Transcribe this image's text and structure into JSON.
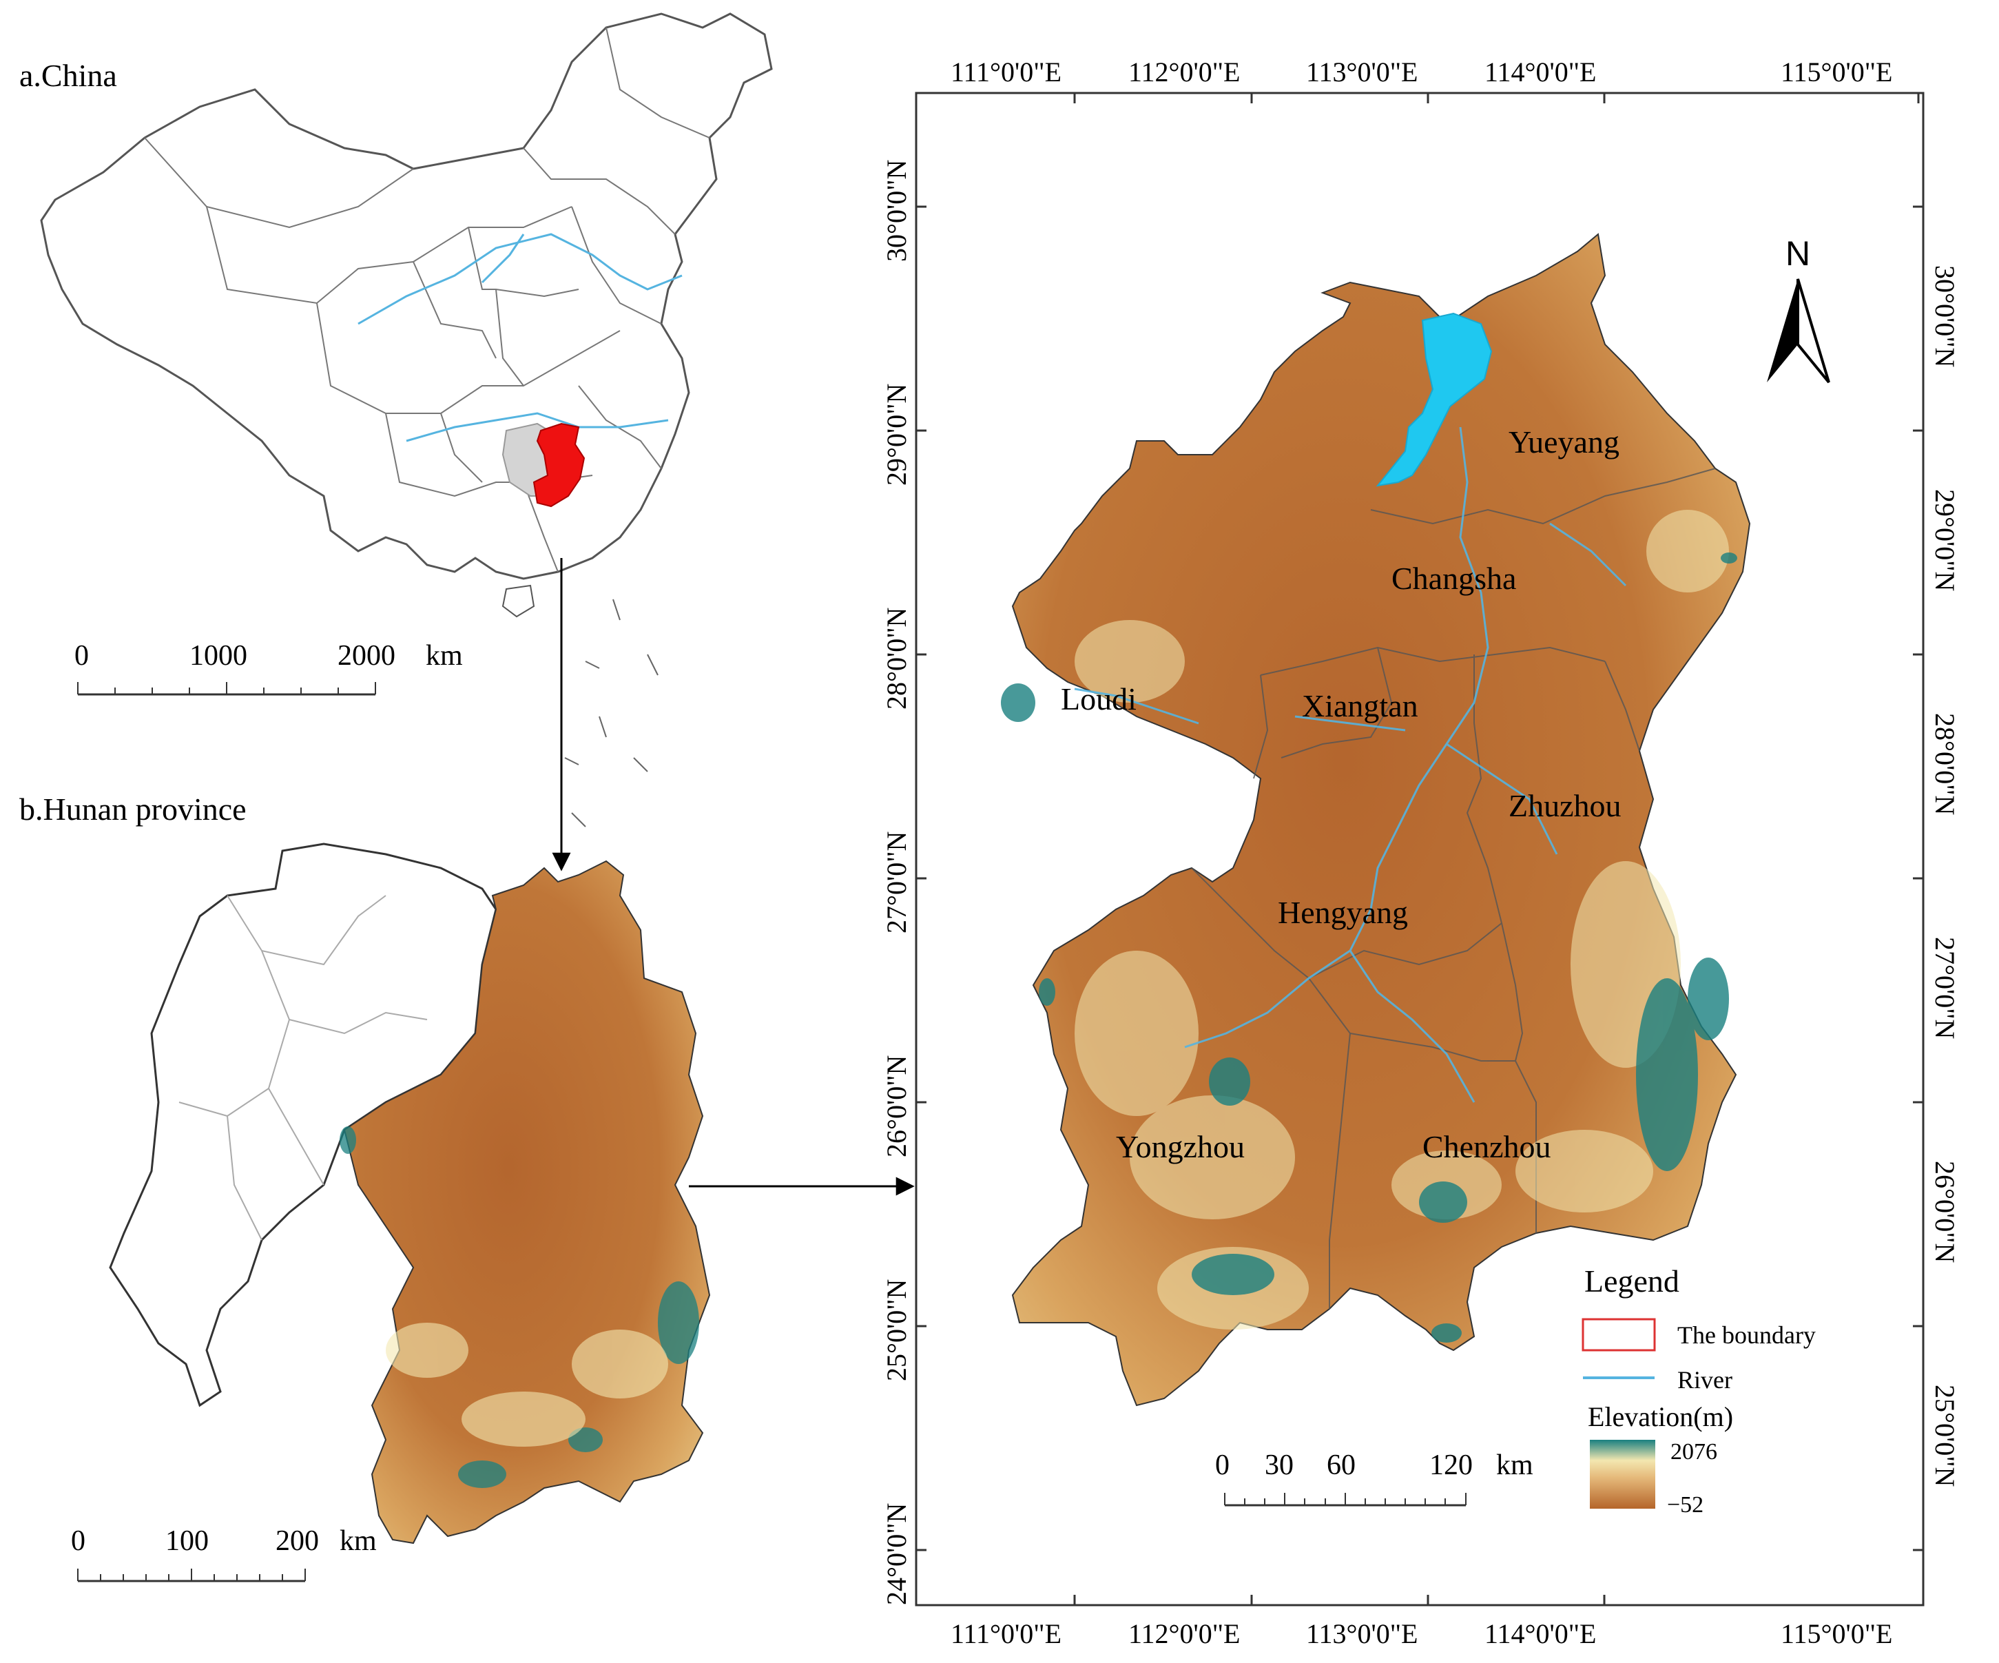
{
  "panels": {
    "china": {
      "label": "a.China",
      "scale": {
        "ticks": [
          "0",
          "1000",
          "2000"
        ],
        "unit": "km"
      }
    },
    "hunan": {
      "label": "b.Hunan province",
      "scale": {
        "ticks": [
          "0",
          "100",
          "200"
        ],
        "unit": "km"
      }
    },
    "study_area": {
      "lon_labels": [
        "111°0'0\"E",
        "112°0'0\"E",
        "113°0'0\"E",
        "114°0'0\"E",
        "115°0'0\"E"
      ],
      "lat_labels": [
        "24°0'0\"N",
        "25°0'0\"N",
        "26°0'0\"N",
        "27°0'0\"N",
        "28°0'0\"N",
        "29°0'0\"N",
        "30°0'0\"N"
      ],
      "north_arrow": "N",
      "cities": [
        "Yueyang",
        "Changsha",
        "Loudi",
        "Xiangtan",
        "Zhuzhou",
        "Hengyang",
        "Yongzhou",
        "Chenzhou"
      ],
      "scale": {
        "ticks": [
          "0",
          "30",
          "60",
          "120"
        ],
        "unit": "km"
      },
      "legend": {
        "title": "Legend",
        "boundary_label": "The boundary",
        "river_label": "River",
        "elevation_title": "Elevation(m)",
        "elevation_max": "2076",
        "elevation_min": "−52"
      }
    }
  },
  "colors": {
    "highlight_region": "#ee1111",
    "neighbor_region": "#d4d4d4",
    "river": "#55b4e0",
    "lake": "#1fc8f0",
    "elevation_low": "#b5652a",
    "elevation_mid": "#f3e7b0",
    "elevation_high": "#1a8080",
    "boundary_swatch": "#dd3333"
  },
  "icons": {
    "north_arrow": "north-arrow-icon"
  }
}
